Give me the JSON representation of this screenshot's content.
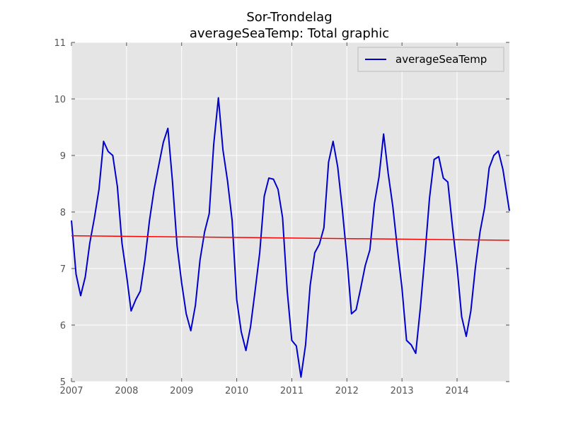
{
  "chart_data": {
    "type": "line",
    "title_line1": "Sor-Trondelag",
    "title_line2": "averageSeaTemp: Total graphic",
    "xlabel": "",
    "ylabel": "",
    "xlim": [
      2007.0,
      2014.95
    ],
    "ylim": [
      5,
      11
    ],
    "x_ticks": [
      2007,
      2008,
      2009,
      2010,
      2011,
      2012,
      2013,
      2014
    ],
    "y_ticks": [
      5,
      6,
      7,
      8,
      9,
      10,
      11
    ],
    "grid": true,
    "legend_position": "top-right",
    "colors": {
      "series": "#0000cc",
      "trend": "#ff0000",
      "plot_bg": "#e5e5e5",
      "grid": "#ffffff"
    },
    "series": [
      {
        "name": "averageSeaTemp",
        "x": [
          2007.0,
          2007.083,
          2007.167,
          2007.25,
          2007.333,
          2007.417,
          2007.5,
          2007.583,
          2007.667,
          2007.75,
          2007.833,
          2007.917,
          2008.0,
          2008.083,
          2008.167,
          2008.25,
          2008.333,
          2008.417,
          2008.5,
          2008.583,
          2008.667,
          2008.75,
          2008.833,
          2008.917,
          2009.0,
          2009.083,
          2009.167,
          2009.25,
          2009.333,
          2009.417,
          2009.5,
          2009.583,
          2009.667,
          2009.75,
          2009.833,
          2009.917,
          2010.0,
          2010.083,
          2010.167,
          2010.25,
          2010.333,
          2010.417,
          2010.5,
          2010.583,
          2010.667,
          2010.75,
          2010.833,
          2010.917,
          2011.0,
          2011.083,
          2011.167,
          2011.25,
          2011.333,
          2011.417,
          2011.5,
          2011.583,
          2011.667,
          2011.75,
          2011.833,
          2011.917,
          2012.0,
          2012.083,
          2012.167,
          2012.25,
          2012.333,
          2012.417,
          2012.5,
          2012.583,
          2012.667,
          2012.75,
          2012.833,
          2012.917,
          2013.0,
          2013.083,
          2013.167,
          2013.25,
          2013.333,
          2013.417,
          2013.5,
          2013.583,
          2013.667,
          2013.75,
          2013.833,
          2013.917,
          2014.0,
          2014.083,
          2014.167,
          2014.25,
          2014.333,
          2014.417,
          2014.5,
          2014.583,
          2014.667,
          2014.75,
          2014.833,
          2014.95
        ],
        "values": [
          7.85,
          6.9,
          6.52,
          6.85,
          7.45,
          7.9,
          8.4,
          9.25,
          9.07,
          9.0,
          8.45,
          7.45,
          6.88,
          6.25,
          6.45,
          6.6,
          7.15,
          7.85,
          8.4,
          8.82,
          9.23,
          9.48,
          8.55,
          7.4,
          6.75,
          6.2,
          5.9,
          6.35,
          7.15,
          7.65,
          7.97,
          9.2,
          10.02,
          9.1,
          8.55,
          7.85,
          6.45,
          5.88,
          5.55,
          5.97,
          6.6,
          7.28,
          8.28,
          8.6,
          8.58,
          8.4,
          7.9,
          6.6,
          5.73,
          5.63,
          5.08,
          5.65,
          6.7,
          7.28,
          7.43,
          7.72,
          8.88,
          9.25,
          8.8,
          8.05,
          7.2,
          6.2,
          6.27,
          6.65,
          7.05,
          7.33,
          8.15,
          8.62,
          9.38,
          8.68,
          8.1,
          7.35,
          6.65,
          5.73,
          5.65,
          5.5,
          6.3,
          7.23,
          8.25,
          8.93,
          8.98,
          8.6,
          8.53,
          7.73,
          7.03,
          6.15,
          5.8,
          6.25,
          7.03,
          7.65,
          8.08,
          8.78,
          9.0,
          9.08,
          8.75,
          8.02
        ]
      },
      {
        "name": "",
        "x": [
          2007.0,
          2014.95
        ],
        "values": [
          7.58,
          7.5
        ]
      }
    ],
    "legend": [
      "averageSeaTemp"
    ]
  }
}
